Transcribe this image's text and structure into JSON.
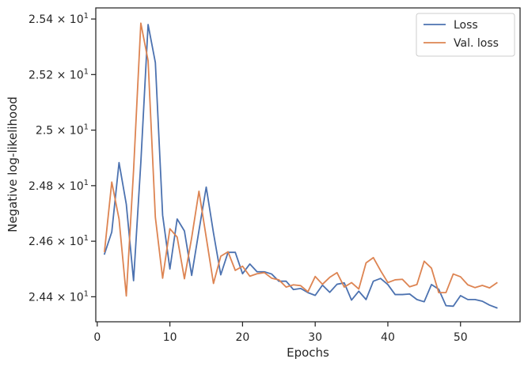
{
  "chart_data": {
    "type": "line",
    "title": "",
    "xlabel": "Epochs",
    "ylabel": "Negative log-likelihood",
    "xlim": [
      -0.2,
      58.2
    ],
    "ylim": [
      24.31,
      25.44
    ],
    "x_ticks": [
      0,
      10,
      20,
      30,
      40,
      50
    ],
    "x_tick_labels": [
      "0",
      "10",
      "20",
      "30",
      "40",
      "50"
    ],
    "y_ticks": [
      {
        "value": 24.4,
        "mantissa": "2.44",
        "exp": "1"
      },
      {
        "value": 24.6,
        "mantissa": "2.46",
        "exp": "1"
      },
      {
        "value": 24.8,
        "mantissa": "2.48",
        "exp": "1"
      },
      {
        "value": 25.0,
        "mantissa": "2.5",
        "exp": "1"
      },
      {
        "value": 25.2,
        "mantissa": "2.52",
        "exp": "1"
      },
      {
        "value": 25.4,
        "mantissa": "2.54",
        "exp": "1"
      }
    ],
    "y_tick_times": "×",
    "y_tick_base": "10",
    "grid": false,
    "legend_position": "top-right",
    "series": [
      {
        "name": "Loss",
        "color": "#4c72b0",
        "x": [
          1,
          2,
          3,
          4,
          5,
          6,
          7,
          8,
          9,
          10,
          11,
          12,
          13,
          14,
          15,
          16,
          17,
          18,
          19,
          20,
          21,
          22,
          23,
          24,
          25,
          26,
          27,
          28,
          29,
          30,
          31,
          32,
          33,
          34,
          35,
          36,
          37,
          38,
          39,
          40,
          41,
          42,
          43,
          44,
          45,
          46,
          47,
          48,
          49,
          50,
          51,
          52,
          53,
          54,
          55
        ],
        "values": [
          24.554,
          24.633,
          24.883,
          24.733,
          24.458,
          24.883,
          25.38,
          25.243,
          24.694,
          24.5,
          24.68,
          24.637,
          24.477,
          24.638,
          24.795,
          24.63,
          24.479,
          24.56,
          24.56,
          24.483,
          24.518,
          24.49,
          24.49,
          24.482,
          24.456,
          24.456,
          24.426,
          24.43,
          24.415,
          24.405,
          24.442,
          24.416,
          24.445,
          24.45,
          24.388,
          24.42,
          24.39,
          24.456,
          24.466,
          24.444,
          24.408,
          24.408,
          24.41,
          24.39,
          24.382,
          24.444,
          24.427,
          24.368,
          24.366,
          24.404,
          24.39,
          24.39,
          24.384,
          24.37,
          24.36
        ]
      },
      {
        "name": "Val. loss",
        "color": "#dd8452",
        "x": [
          1,
          2,
          3,
          4,
          5,
          6,
          7,
          8,
          9,
          10,
          11,
          12,
          13,
          14,
          15,
          16,
          17,
          18,
          19,
          20,
          21,
          22,
          23,
          24,
          25,
          26,
          27,
          28,
          29,
          30,
          31,
          32,
          33,
          34,
          35,
          36,
          37,
          38,
          39,
          40,
          41,
          42,
          43,
          44,
          45,
          46,
          47,
          48,
          49,
          50,
          51,
          52,
          53,
          54,
          55
        ],
        "values": [
          24.563,
          24.813,
          24.68,
          24.403,
          24.855,
          25.385,
          25.25,
          24.686,
          24.467,
          24.645,
          24.615,
          24.465,
          24.613,
          24.78,
          24.614,
          24.448,
          24.546,
          24.562,
          24.495,
          24.51,
          24.474,
          24.483,
          24.487,
          24.467,
          24.461,
          24.435,
          24.443,
          24.44,
          24.418,
          24.473,
          24.445,
          24.47,
          24.487,
          24.435,
          24.451,
          24.428,
          24.522,
          24.541,
          24.494,
          24.451,
          24.461,
          24.463,
          24.436,
          24.444,
          24.528,
          24.503,
          24.415,
          24.415,
          24.482,
          24.472,
          24.443,
          24.433,
          24.441,
          24.432,
          24.45
        ]
      }
    ]
  }
}
